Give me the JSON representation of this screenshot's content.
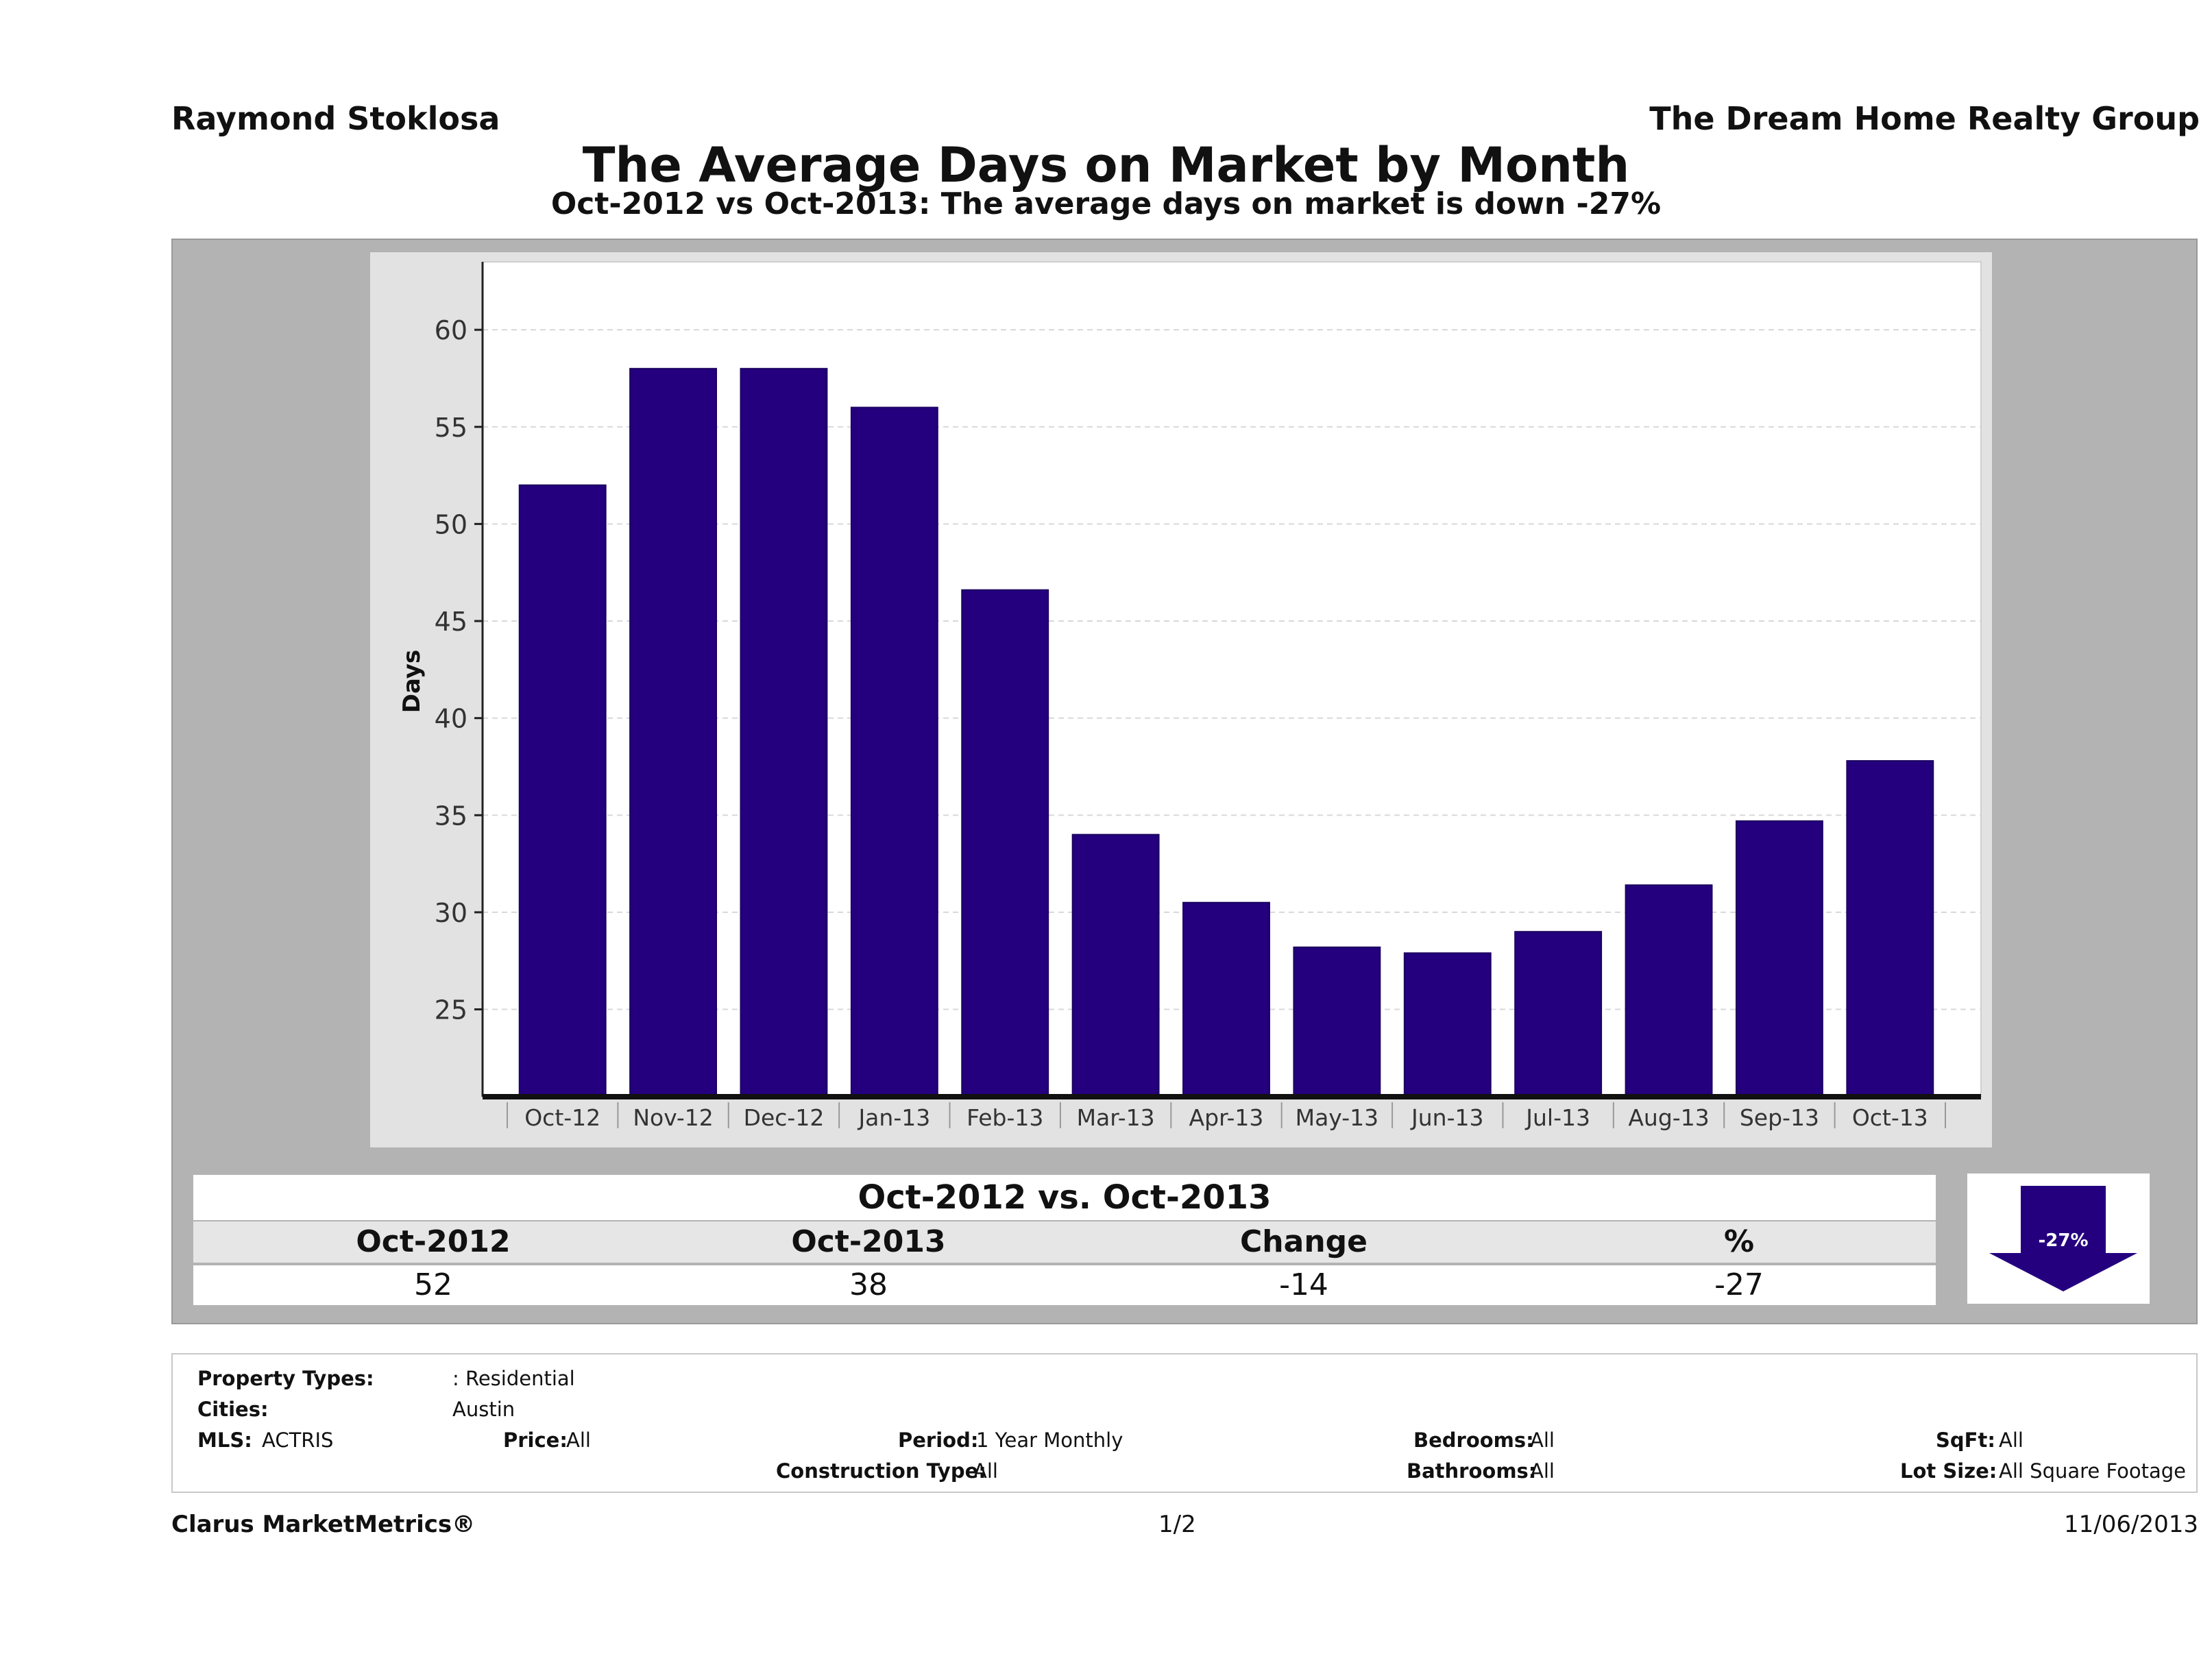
{
  "header": {
    "agent": "Raymond Stoklosa",
    "company": "The Dream Home Realty Group",
    "title": "The Average Days on Market by Month",
    "subtitle": "Oct-2012 vs Oct-2013: The average days on market is down -27%"
  },
  "chart_data": {
    "type": "bar",
    "categories": [
      "Oct-12",
      "Nov-12",
      "Dec-12",
      "Jan-13",
      "Feb-13",
      "Mar-13",
      "Apr-13",
      "May-13",
      "Jun-13",
      "Jul-13",
      "Aug-13",
      "Sep-13",
      "Oct-13"
    ],
    "values": [
      52,
      58,
      58,
      56,
      46.6,
      34,
      30.5,
      28.2,
      27.9,
      29,
      31.4,
      34.7,
      37.8
    ],
    "ylabel": "Days",
    "xlabel": "",
    "ylim": [
      20.5,
      63.5
    ],
    "yticks": [
      25,
      30,
      35,
      40,
      45,
      50,
      55,
      60
    ],
    "bar_color": "#24007f",
    "grid": true
  },
  "summary": {
    "title": "Oct-2012 vs. Oct-2013",
    "columns": [
      "Oct-2012",
      "Oct-2013",
      "Change",
      "%"
    ],
    "values": [
      "52",
      "38",
      "-14",
      "-27"
    ],
    "badge": "-27%",
    "badge_color": "#24007f"
  },
  "filters": {
    "property_types_label": "Property Types:",
    "property_types_value": ": Residential",
    "cities_label": "Cities:",
    "cities_value": "Austin",
    "mls_label": "MLS:",
    "mls_value": "ACTRIS",
    "price_label": "Price:",
    "price_value": "All",
    "period_label": "Period:",
    "period_value": "1 Year Monthly",
    "construction_label": "Construction Type:",
    "construction_value": "All",
    "bedrooms_label": "Bedrooms:",
    "bedrooms_value": "All",
    "bathrooms_label": "Bathrooms:",
    "bathrooms_value": "All",
    "sqft_label": "SqFt:",
    "sqft_value": "All",
    "lotsize_label": "Lot Size:",
    "lotsize_value": "All Square Footage"
  },
  "footer": {
    "brand": "Clarus MarketMetrics®",
    "page": "1/2",
    "date": "11/06/2013"
  }
}
